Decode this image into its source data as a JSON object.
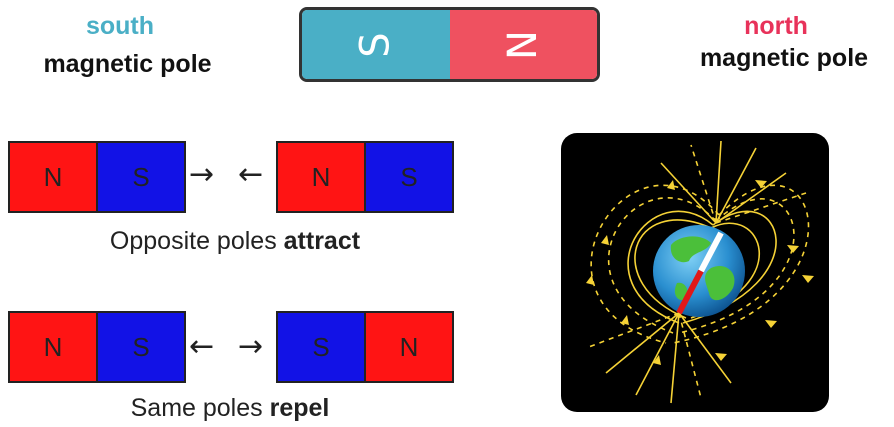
{
  "poles": {
    "south": {
      "word": "south",
      "label": "magnetic pole",
      "color": "#4aafc6"
    },
    "north": {
      "word": "north",
      "label": "magnetic pole",
      "color": "#e8325a"
    }
  },
  "bar_magnet": {
    "left_letter": "S",
    "right_letter": "N",
    "left_color": "#4aafc6",
    "right_color": "#ef5160"
  },
  "attract": {
    "magnet1": [
      "N",
      "S"
    ],
    "magnet2": [
      "N",
      "S"
    ],
    "arrow_left": "→",
    "arrow_right": "←",
    "caption_prefix": "Opposite poles ",
    "caption_bold": "attract"
  },
  "repel": {
    "magnet1": [
      "N",
      "S"
    ],
    "magnet2": [
      "S",
      "N"
    ],
    "arrow_left": "←",
    "arrow_right": "→",
    "caption_prefix": "Same poles ",
    "caption_bold": "repel"
  },
  "colors": {
    "red": "#ff1414",
    "blue": "#1212e6",
    "field_line": "#f5d236"
  }
}
